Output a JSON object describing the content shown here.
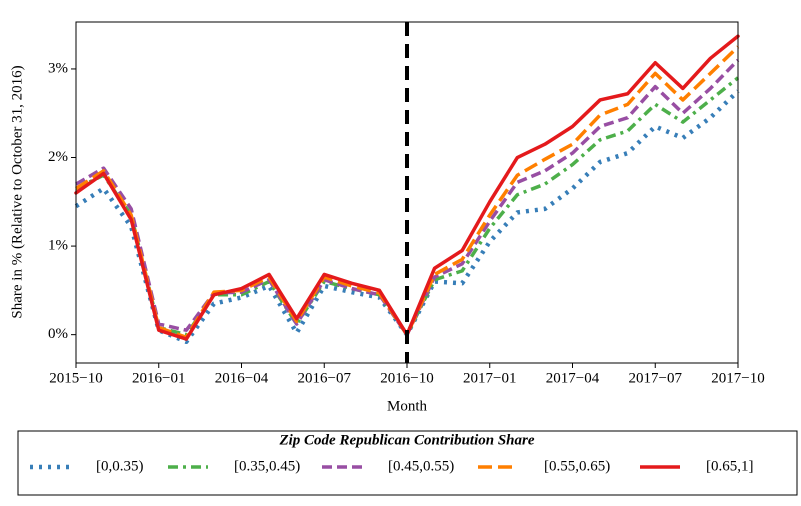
{
  "chart_data": {
    "type": "line",
    "x_label": "Month",
    "y_label": "Share in % (Relative to October 31, 2016)",
    "x": [
      "2015-10",
      "2015-11",
      "2015-12",
      "2016-01",
      "2016-02",
      "2016-03",
      "2016-04",
      "2016-05",
      "2016-06",
      "2016-07",
      "2016-08",
      "2016-09",
      "2016-10",
      "2016-11",
      "2016-12",
      "2017-01",
      "2017-02",
      "2017-03",
      "2017-04",
      "2017-05",
      "2017-06",
      "2017-07",
      "2017-08",
      "2017-09",
      "2017-10"
    ],
    "xticks": [
      {
        "value": "2015-10",
        "label": "2015−10"
      },
      {
        "value": "2016-01",
        "label": "2016−01"
      },
      {
        "value": "2016-04",
        "label": "2016−04"
      },
      {
        "value": "2016-07",
        "label": "2016−07"
      },
      {
        "value": "2016-10",
        "label": "2016−10"
      },
      {
        "value": "2017-01",
        "label": "2017−01"
      },
      {
        "value": "2017-04",
        "label": "2017−04"
      },
      {
        "value": "2017-07",
        "label": "2017−07"
      },
      {
        "value": "2017-10",
        "label": "2017−10"
      }
    ],
    "ylim": [
      -0.32,
      3.53
    ],
    "yticks": [
      {
        "value": 0,
        "label": "0%"
      },
      {
        "value": 1,
        "label": "1%"
      },
      {
        "value": 2,
        "label": "2%"
      },
      {
        "value": 3,
        "label": "3%"
      }
    ],
    "event_line": "2016-10",
    "legend_title": "Zip Code Republican Contribution Share",
    "legend_position": "below",
    "series": [
      {
        "name": "[0,0.35)",
        "color": "#377eb8",
        "style": "dotted",
        "values": [
          1.45,
          1.65,
          1.22,
          0.05,
          -0.08,
          0.35,
          0.42,
          0.55,
          0.02,
          0.55,
          0.48,
          0.42,
          0,
          0.6,
          0.58,
          1.05,
          1.38,
          1.42,
          1.65,
          1.95,
          2.05,
          2.35,
          2.22,
          2.45,
          2.75
        ]
      },
      {
        "name": "[0.35,0.45)",
        "color": "#4daf4a",
        "style": "dashdot",
        "values": [
          1.65,
          1.8,
          1.35,
          0.08,
          0,
          0.45,
          0.45,
          0.6,
          0.12,
          0.6,
          0.52,
          0.45,
          0,
          0.62,
          0.72,
          1.2,
          1.58,
          1.7,
          1.92,
          2.2,
          2.3,
          2.6,
          2.4,
          2.65,
          2.9
        ]
      },
      {
        "name": "[0.45,0.55)",
        "color": "#984ea3",
        "style": "dashed",
        "values": [
          1.7,
          1.88,
          1.42,
          0.12,
          0.05,
          0.47,
          0.48,
          0.62,
          0.12,
          0.62,
          0.52,
          0.45,
          0,
          0.65,
          0.8,
          1.28,
          1.72,
          1.85,
          2.05,
          2.35,
          2.45,
          2.8,
          2.5,
          2.78,
          3.1
        ]
      },
      {
        "name": "[0.55,0.65)",
        "color": "#ff7f00",
        "style": "longdash",
        "values": [
          1.65,
          1.85,
          1.35,
          0.08,
          -0.03,
          0.48,
          0.5,
          0.65,
          0.15,
          0.65,
          0.55,
          0.47,
          0,
          0.68,
          0.85,
          1.35,
          1.8,
          1.98,
          2.15,
          2.48,
          2.6,
          2.95,
          2.65,
          2.95,
          3.25
        ]
      },
      {
        "name": "[0.65,1]",
        "color": "#e41a1c",
        "style": "solid",
        "values": [
          1.6,
          1.82,
          1.3,
          0.05,
          -0.05,
          0.45,
          0.52,
          0.68,
          0.18,
          0.68,
          0.58,
          0.5,
          0,
          0.75,
          0.95,
          1.5,
          2.0,
          2.15,
          2.35,
          2.65,
          2.72,
          3.07,
          2.78,
          3.12,
          3.37
        ]
      }
    ]
  }
}
